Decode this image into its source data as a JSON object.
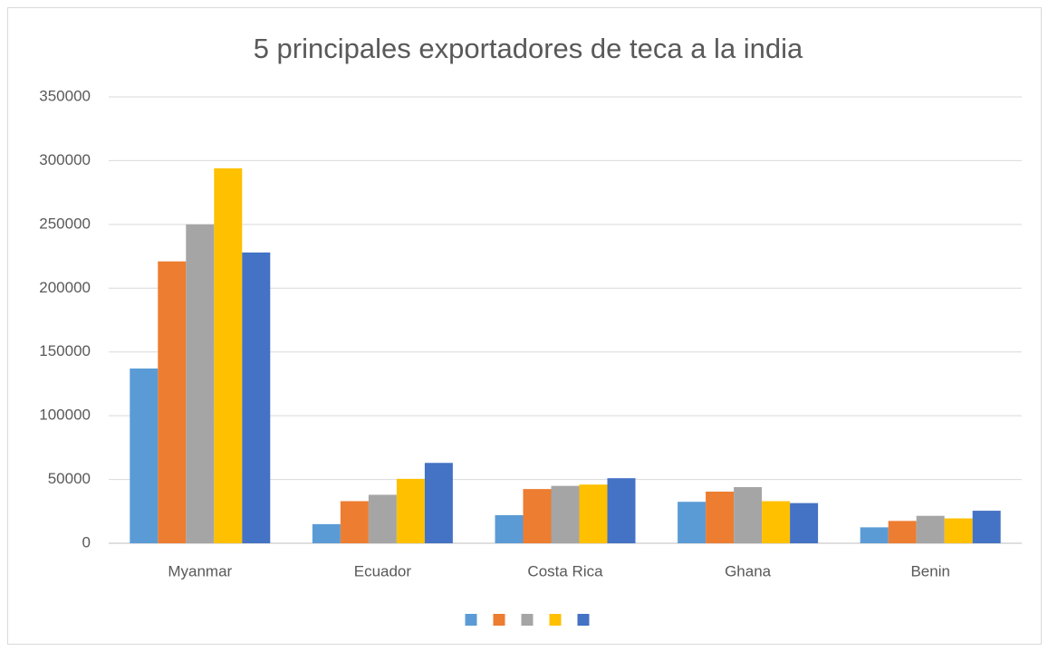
{
  "chart_data": {
    "type": "bar",
    "title": "5 principales exportadores de teca a la india",
    "categories": [
      "Myanmar",
      "Ecuador",
      "Costa Rica",
      "Ghana",
      "Benin"
    ],
    "series": [
      {
        "color": "#5b9bd5",
        "values": [
          137000,
          15000,
          22000,
          32500,
          12500
        ]
      },
      {
        "color": "#ed7d31",
        "values": [
          221000,
          33000,
          42500,
          40500,
          17500
        ]
      },
      {
        "color": "#a5a5a5",
        "values": [
          250000,
          38000,
          45000,
          44000,
          21500
        ]
      },
      {
        "color": "#ffc000",
        "values": [
          294000,
          50500,
          46000,
          33000,
          19500
        ]
      },
      {
        "color": "#4472c4",
        "values": [
          228000,
          63000,
          51000,
          31500,
          25500
        ]
      }
    ],
    "ylim": [
      0,
      350000
    ],
    "yticks": [
      0,
      50000,
      100000,
      150000,
      200000,
      250000,
      300000,
      350000
    ],
    "grid": true,
    "legend": "bottom"
  }
}
